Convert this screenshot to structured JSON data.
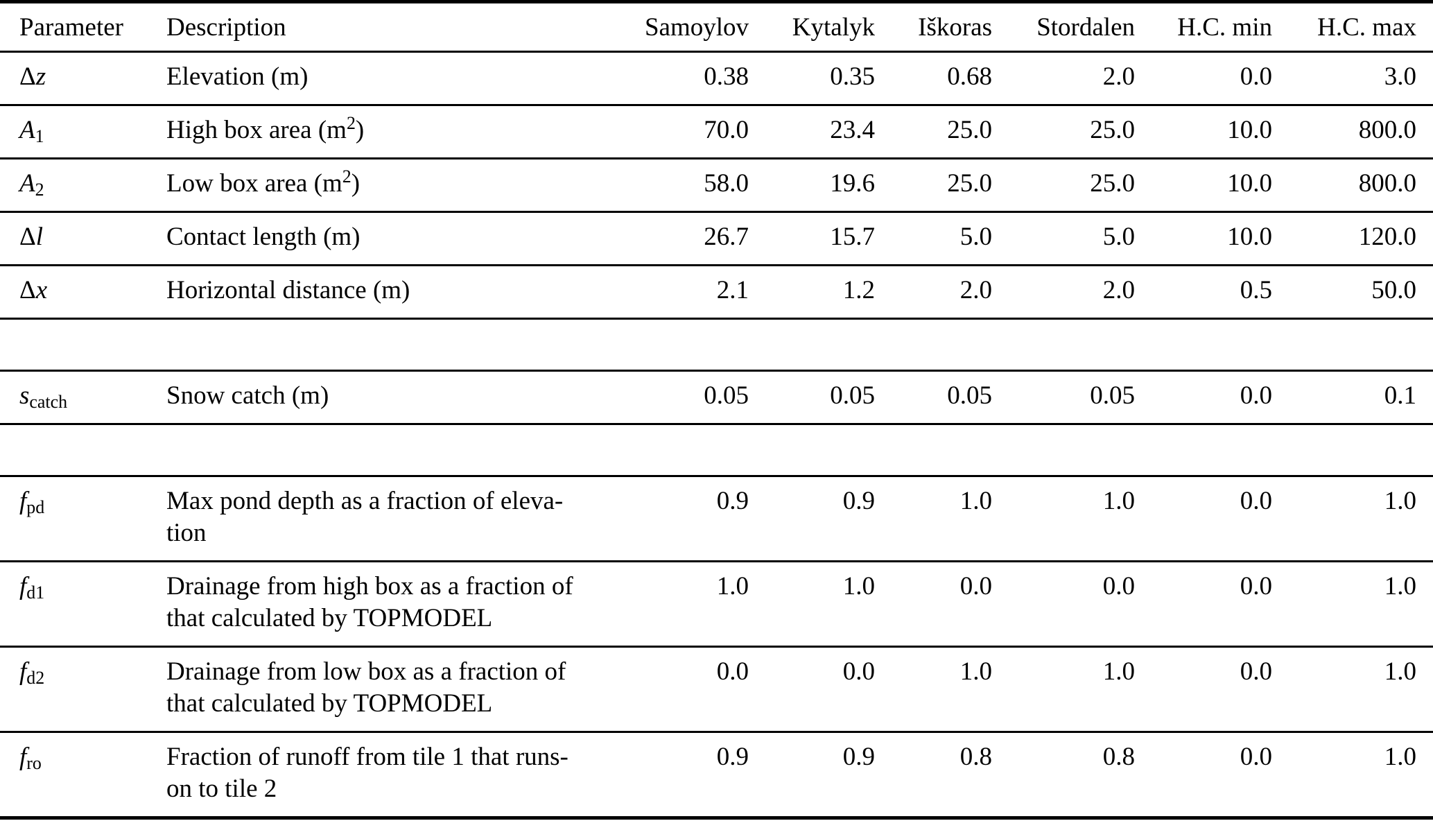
{
  "colors": {
    "text": "#000000",
    "rule": "#000000",
    "background": "#ffffff"
  },
  "table": {
    "columns": [
      {
        "key": "parameter",
        "label": "Parameter",
        "align": "left"
      },
      {
        "key": "description",
        "label": "Description",
        "align": "left"
      },
      {
        "key": "samoylov",
        "label": "Samoylov",
        "align": "right"
      },
      {
        "key": "kytalyk",
        "label": "Kytalyk",
        "align": "right"
      },
      {
        "key": "iskoras",
        "label": "Iškoras",
        "align": "right"
      },
      {
        "key": "stordalen",
        "label": "Stordalen",
        "align": "right"
      },
      {
        "key": "hc_min",
        "label": "H.C. min",
        "align": "right"
      },
      {
        "key": "hc_max",
        "label": "H.C. max",
        "align": "right"
      }
    ],
    "rows": [
      {
        "type": "data",
        "parameter": {
          "prefix": "Δ",
          "letter": "z",
          "sub": ""
        },
        "description_lines": [
          [
            {
              "t": "Elevation (m)"
            }
          ]
        ],
        "values": [
          "0.38",
          "0.35",
          "0.68",
          "2.0",
          "0.0",
          "3.0"
        ]
      },
      {
        "type": "data",
        "parameter": {
          "prefix": "",
          "letter": "A",
          "sub": "1"
        },
        "description_lines": [
          [
            {
              "t": "High box area (m"
            },
            {
              "sup": "2"
            },
            {
              "t": ")"
            }
          ]
        ],
        "values": [
          "70.0",
          "23.4",
          "25.0",
          "25.0",
          "10.0",
          "800.0"
        ]
      },
      {
        "type": "data",
        "parameter": {
          "prefix": "",
          "letter": "A",
          "sub": "2"
        },
        "description_lines": [
          [
            {
              "t": "Low box area (m"
            },
            {
              "sup": "2"
            },
            {
              "t": ")"
            }
          ]
        ],
        "values": [
          "58.0",
          "19.6",
          "25.0",
          "25.0",
          "10.0",
          "800.0"
        ]
      },
      {
        "type": "data",
        "parameter": {
          "prefix": "Δ",
          "letter": "l",
          "sub": ""
        },
        "description_lines": [
          [
            {
              "t": "Contact length (m)"
            }
          ]
        ],
        "values": [
          "26.7",
          "15.7",
          "5.0",
          "5.0",
          "10.0",
          "120.0"
        ]
      },
      {
        "type": "data",
        "parameter": {
          "prefix": "Δ",
          "letter": "x",
          "sub": ""
        },
        "description_lines": [
          [
            {
              "t": "Horizontal distance (m)"
            }
          ]
        ],
        "values": [
          "2.1",
          "1.2",
          "2.0",
          "2.0",
          "0.5",
          "50.0"
        ]
      },
      {
        "type": "spacer"
      },
      {
        "type": "data",
        "parameter": {
          "prefix": "",
          "letter": "s",
          "sub": "catch"
        },
        "description_lines": [
          [
            {
              "t": "Snow catch (m)"
            }
          ]
        ],
        "values": [
          "0.05",
          "0.05",
          "0.05",
          "0.05",
          "0.0",
          "0.1"
        ]
      },
      {
        "type": "spacer"
      },
      {
        "type": "data",
        "parameter": {
          "prefix": "",
          "letter": "f",
          "sub": "pd"
        },
        "description_lines": [
          [
            {
              "t": "Max pond depth as a fraction of eleva-"
            }
          ],
          [
            {
              "t": "tion"
            }
          ]
        ],
        "values": [
          "0.9",
          "0.9",
          "1.0",
          "1.0",
          "0.0",
          "1.0"
        ]
      },
      {
        "type": "data",
        "parameter": {
          "prefix": "",
          "letter": "f",
          "sub": "d1"
        },
        "description_lines": [
          [
            {
              "t": "Drainage from high box as a fraction of"
            }
          ],
          [
            {
              "t": "that calculated by TOPMODEL"
            }
          ]
        ],
        "values": [
          "1.0",
          "1.0",
          "0.0",
          "0.0",
          "0.0",
          "1.0"
        ]
      },
      {
        "type": "data",
        "parameter": {
          "prefix": "",
          "letter": "f",
          "sub": "d2"
        },
        "description_lines": [
          [
            {
              "t": "Drainage from low box as a fraction of"
            }
          ],
          [
            {
              "t": "that calculated by TOPMODEL"
            }
          ]
        ],
        "values": [
          "0.0",
          "0.0",
          "1.0",
          "1.0",
          "0.0",
          "1.0"
        ]
      },
      {
        "type": "data",
        "parameter": {
          "prefix": "",
          "letter": "f",
          "sub": "ro"
        },
        "description_lines": [
          [
            {
              "t": "Fraction of runoff from tile 1 that runs-"
            }
          ],
          [
            {
              "t": "on to tile 2"
            }
          ]
        ],
        "values": [
          "0.9",
          "0.9",
          "0.8",
          "0.8",
          "0.0",
          "1.0"
        ]
      }
    ]
  }
}
